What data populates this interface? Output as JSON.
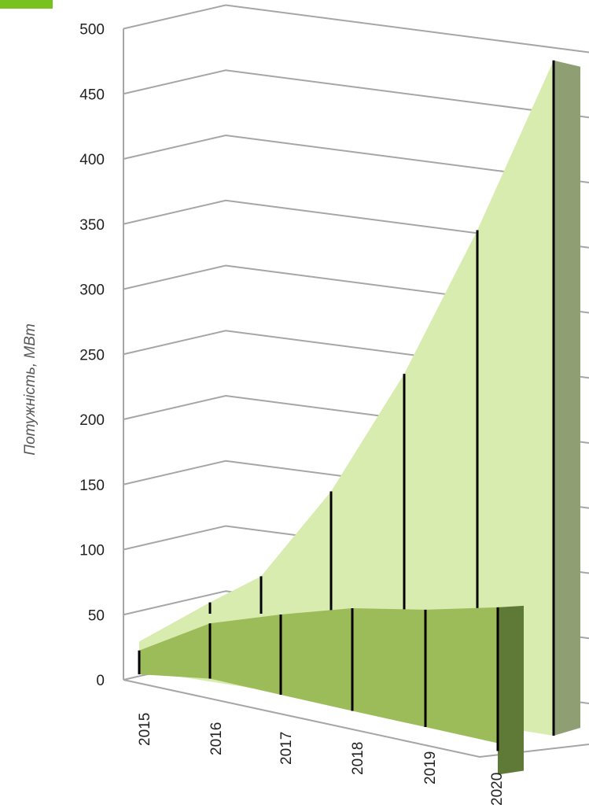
{
  "colors": {
    "accent": "#77c21f",
    "back_series_fill": "#d8ecb0",
    "front_series_fill": "#9cbb59",
    "front_series_dark": "#5f7a36",
    "back_series_side": "#8f9e73",
    "grid": "#a6a6a6",
    "divider": "#000000"
  },
  "chart_data": {
    "type": "area",
    "three_d": true,
    "categories": [
      "2015",
      "2016",
      "2017",
      "2018",
      "2019",
      "2020"
    ],
    "series": [
      {
        "values": [
          10,
          40,
          60,
          125,
          215,
          325
        ]
      },
      {
        "values": [
          10,
          40,
          55,
          68,
          75,
          85
        ]
      }
    ],
    "ylabel": "Потужність, МВт",
    "ylim": [
      0,
      500
    ],
    "yticks": [
      "0",
      "50",
      "100",
      "150",
      "200",
      "250",
      "300",
      "350",
      "400",
      "450",
      "500"
    ],
    "grid": true,
    "legend": "none"
  }
}
